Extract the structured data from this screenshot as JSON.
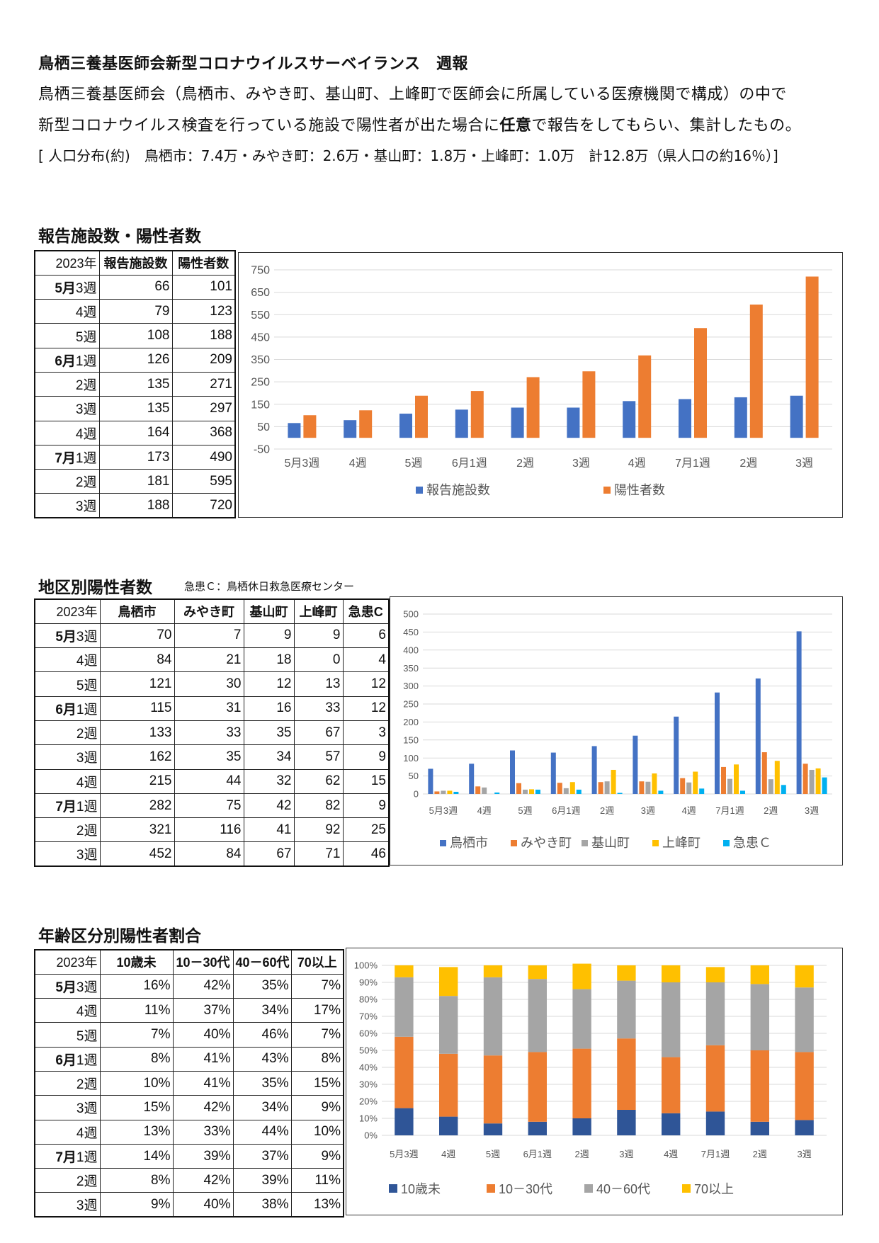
{
  "header": {
    "title": "鳥栖三養基医師会新型コロナウイルスサーベイランス　週報",
    "desc1": "鳥栖三養基医師会（鳥栖市、みやき町、基山町、上峰町で医師会に所属している医療機関で構成）の中で",
    "desc2_pre": "新型コロナウイルス検査を行っている施設で陽性者が出た場合に",
    "desc2_bold": "任意",
    "desc2_post": "で報告をしてもらい、集計したもの。",
    "population": "[ 人口分布(約)　鳥栖市：7.4万・みやき町：2.6万・基山町：1.8万・上峰町：1.0万　計12.8万（県人口の約16％）]"
  },
  "section1": {
    "title": "報告施設数・陽性者数",
    "table": {
      "headers": [
        "2023年",
        "報告施設数",
        "陽性者数"
      ],
      "rows": [
        {
          "month": "5月",
          "week": "3週",
          "values": [
            "66",
            "101"
          ]
        },
        {
          "month": "",
          "week": "4週",
          "values": [
            "79",
            "123"
          ]
        },
        {
          "month": "",
          "week": "5週",
          "values": [
            "108",
            "188"
          ]
        },
        {
          "month": "6月",
          "week": "1週",
          "values": [
            "126",
            "209"
          ]
        },
        {
          "month": "",
          "week": "2週",
          "values": [
            "135",
            "271"
          ]
        },
        {
          "month": "",
          "week": "3週",
          "values": [
            "135",
            "297"
          ]
        },
        {
          "month": "",
          "week": "4週",
          "values": [
            "164",
            "368"
          ]
        },
        {
          "month": "7月",
          "week": "1週",
          "values": [
            "173",
            "490"
          ]
        },
        {
          "month": "",
          "week": "2週",
          "values": [
            "181",
            "595"
          ]
        },
        {
          "month": "",
          "week": "3週",
          "values": [
            "188",
            "720"
          ]
        }
      ]
    }
  },
  "section2": {
    "title": "地区別陽性者数",
    "note": "急患Ｃ：鳥栖休日救急医療センター",
    "table": {
      "headers": [
        "2023年",
        "鳥栖市",
        "みやき町",
        "基山町",
        "上峰町",
        "急患C"
      ],
      "rows": [
        {
          "month": "5月",
          "week": "3週",
          "values": [
            "70",
            "7",
            "9",
            "9",
            "6"
          ]
        },
        {
          "month": "",
          "week": "4週",
          "values": [
            "84",
            "21",
            "18",
            "0",
            "4"
          ]
        },
        {
          "month": "",
          "week": "5週",
          "values": [
            "121",
            "30",
            "12",
            "13",
            "12"
          ]
        },
        {
          "month": "6月",
          "week": "1週",
          "values": [
            "115",
            "31",
            "16",
            "33",
            "12"
          ]
        },
        {
          "month": "",
          "week": "2週",
          "values": [
            "133",
            "33",
            "35",
            "67",
            "3"
          ]
        },
        {
          "month": "",
          "week": "3週",
          "values": [
            "162",
            "35",
            "34",
            "57",
            "9"
          ]
        },
        {
          "month": "",
          "week": "4週",
          "values": [
            "215",
            "44",
            "32",
            "62",
            "15"
          ]
        },
        {
          "month": "7月",
          "week": "1週",
          "values": [
            "282",
            "75",
            "42",
            "82",
            "9"
          ]
        },
        {
          "month": "",
          "week": "2週",
          "values": [
            "321",
            "116",
            "41",
            "92",
            "25"
          ]
        },
        {
          "month": "",
          "week": "3週",
          "values": [
            "452",
            "84",
            "67",
            "71",
            "46"
          ]
        }
      ]
    }
  },
  "section3": {
    "title": "年齢区分別陽性者割合",
    "table": {
      "headers": [
        "2023年",
        "10歳未",
        "10－30代",
        "40－60代",
        "70以上"
      ],
      "rows": [
        {
          "month": "5月",
          "week": "3週",
          "values": [
            "16%",
            "42%",
            "35%",
            "7%"
          ]
        },
        {
          "month": "",
          "week": "4週",
          "values": [
            "11%",
            "37%",
            "34%",
            "17%"
          ]
        },
        {
          "month": "",
          "week": "5週",
          "values": [
            "7%",
            "40%",
            "46%",
            "7%"
          ]
        },
        {
          "month": "6月",
          "week": "1週",
          "values": [
            "8%",
            "41%",
            "43%",
            "8%"
          ]
        },
        {
          "month": "",
          "week": "2週",
          "values": [
            "10%",
            "41%",
            "35%",
            "15%"
          ]
        },
        {
          "month": "",
          "week": "3週",
          "values": [
            "15%",
            "42%",
            "34%",
            "9%"
          ]
        },
        {
          "month": "",
          "week": "4週",
          "values": [
            "13%",
            "33%",
            "44%",
            "10%"
          ]
        },
        {
          "month": "7月",
          "week": "1週",
          "values": [
            "14%",
            "39%",
            "37%",
            "9%"
          ]
        },
        {
          "month": "",
          "week": "2週",
          "values": [
            "8%",
            "42%",
            "39%",
            "11%"
          ]
        },
        {
          "month": "",
          "week": "3週",
          "values": [
            "9%",
            "40%",
            "38%",
            "13%"
          ]
        }
      ]
    }
  },
  "chart_data": [
    {
      "type": "bar",
      "categories": [
        "5月3週",
        "4週",
        "5週",
        "6月1週",
        "2週",
        "3週",
        "4週",
        "7月1週",
        "2週",
        "3週"
      ],
      "series": [
        {
          "name": "報告施設数",
          "color": "#4472C4",
          "values": [
            66,
            79,
            108,
            126,
            135,
            135,
            164,
            173,
            181,
            188
          ]
        },
        {
          "name": "陽性者数",
          "color": "#ED7D31",
          "values": [
            101,
            123,
            188,
            209,
            271,
            297,
            368,
            490,
            595,
            720
          ]
        }
      ],
      "yticks": [
        "750",
        "650",
        "550",
        "450",
        "350",
        "250",
        "150",
        "50",
        "-50"
      ],
      "ylim": [
        -50,
        750
      ],
      "grid": true,
      "legend": "bottom"
    },
    {
      "type": "bar",
      "categories": [
        "5月3週",
        "4週",
        "5週",
        "6月1週",
        "2週",
        "3週",
        "4週",
        "7月1週",
        "2週",
        "3週"
      ],
      "series": [
        {
          "name": "鳥栖市",
          "color": "#4472C4",
          "values": [
            70,
            84,
            121,
            115,
            133,
            162,
            215,
            282,
            321,
            452
          ]
        },
        {
          "name": "みやき町",
          "color": "#ED7D31",
          "values": [
            7,
            21,
            30,
            31,
            33,
            35,
            44,
            75,
            116,
            84
          ]
        },
        {
          "name": "基山町",
          "color": "#A5A5A5",
          "values": [
            9,
            18,
            12,
            16,
            35,
            34,
            32,
            42,
            41,
            67
          ]
        },
        {
          "name": "上峰町",
          "color": "#FFC000",
          "values": [
            9,
            0,
            13,
            33,
            67,
            57,
            62,
            82,
            92,
            71
          ]
        },
        {
          "name": "急患Ｃ",
          "color": "#00B0F0",
          "values": [
            6,
            4,
            12,
            12,
            3,
            9,
            15,
            9,
            25,
            46
          ]
        }
      ],
      "yticks": [
        "500",
        "450",
        "400",
        "350",
        "300",
        "250",
        "200",
        "150",
        "100",
        "50",
        "0"
      ],
      "ylim": [
        0,
        500
      ],
      "grid": true,
      "legend": "bottom"
    },
    {
      "type": "bar",
      "stacked": true,
      "categories": [
        "5月3週",
        "4週",
        "5週",
        "6月1週",
        "2週",
        "3週",
        "4週",
        "7月1週",
        "2週",
        "3週"
      ],
      "series": [
        {
          "name": "10歳未",
          "color": "#2F5597",
          "values": [
            16,
            11,
            7,
            8,
            10,
            15,
            13,
            14,
            8,
            9
          ]
        },
        {
          "name": "10－30代",
          "color": "#ED7D31",
          "values": [
            42,
            37,
            40,
            41,
            41,
            42,
            33,
            39,
            42,
            40
          ]
        },
        {
          "name": "40－60代",
          "color": "#A5A5A5",
          "values": [
            35,
            34,
            46,
            43,
            35,
            34,
            44,
            37,
            39,
            38
          ]
        },
        {
          "name": "70以上",
          "color": "#FFC000",
          "values": [
            7,
            17,
            7,
            8,
            15,
            9,
            10,
            9,
            11,
            13
          ]
        }
      ],
      "yticks": [
        "100%",
        "90%",
        "80%",
        "70%",
        "60%",
        "50%",
        "40%",
        "30%",
        "20%",
        "10%",
        "0%"
      ],
      "ylim": [
        0,
        100
      ],
      "grid": true,
      "legend": "bottom"
    }
  ]
}
